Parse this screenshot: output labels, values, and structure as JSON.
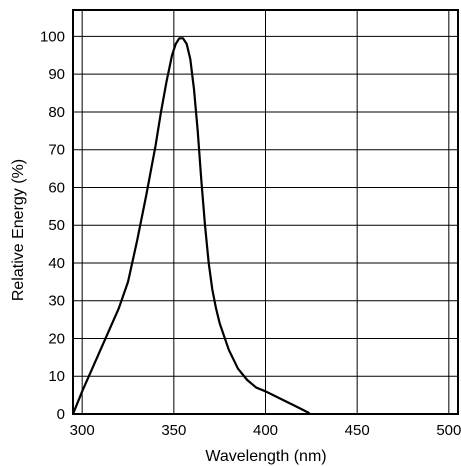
{
  "chart_data": {
    "type": "line",
    "xlabel": "Wavelength (nm)",
    "ylabel": "Relative Energy (%)",
    "xlim": [
      295,
      505
    ],
    "ylim": [
      0,
      107
    ],
    "x_ticks": [
      300,
      350,
      400,
      450,
      500
    ],
    "y_ticks": [
      0,
      10,
      20,
      30,
      40,
      50,
      60,
      70,
      80,
      90,
      100
    ],
    "grid": true,
    "series": [
      {
        "x": [
          295,
          300,
          310,
          320,
          325,
          330,
          335,
          340,
          343,
          346,
          349,
          351,
          353,
          355,
          357,
          359,
          361,
          363,
          365,
          367,
          369,
          371,
          373,
          375,
          380,
          385,
          390,
          395,
          400,
          405,
          410,
          415,
          420,
          424
        ],
        "y": [
          0,
          6,
          17,
          28,
          35,
          46,
          58,
          71,
          80,
          88,
          95,
          98,
          99.5,
          99.5,
          98,
          94,
          86,
          75,
          62,
          50,
          40,
          33,
          28,
          24,
          17,
          12,
          9,
          7,
          6,
          4.8,
          3.6,
          2.4,
          1.2,
          0.2
        ]
      }
    ]
  }
}
